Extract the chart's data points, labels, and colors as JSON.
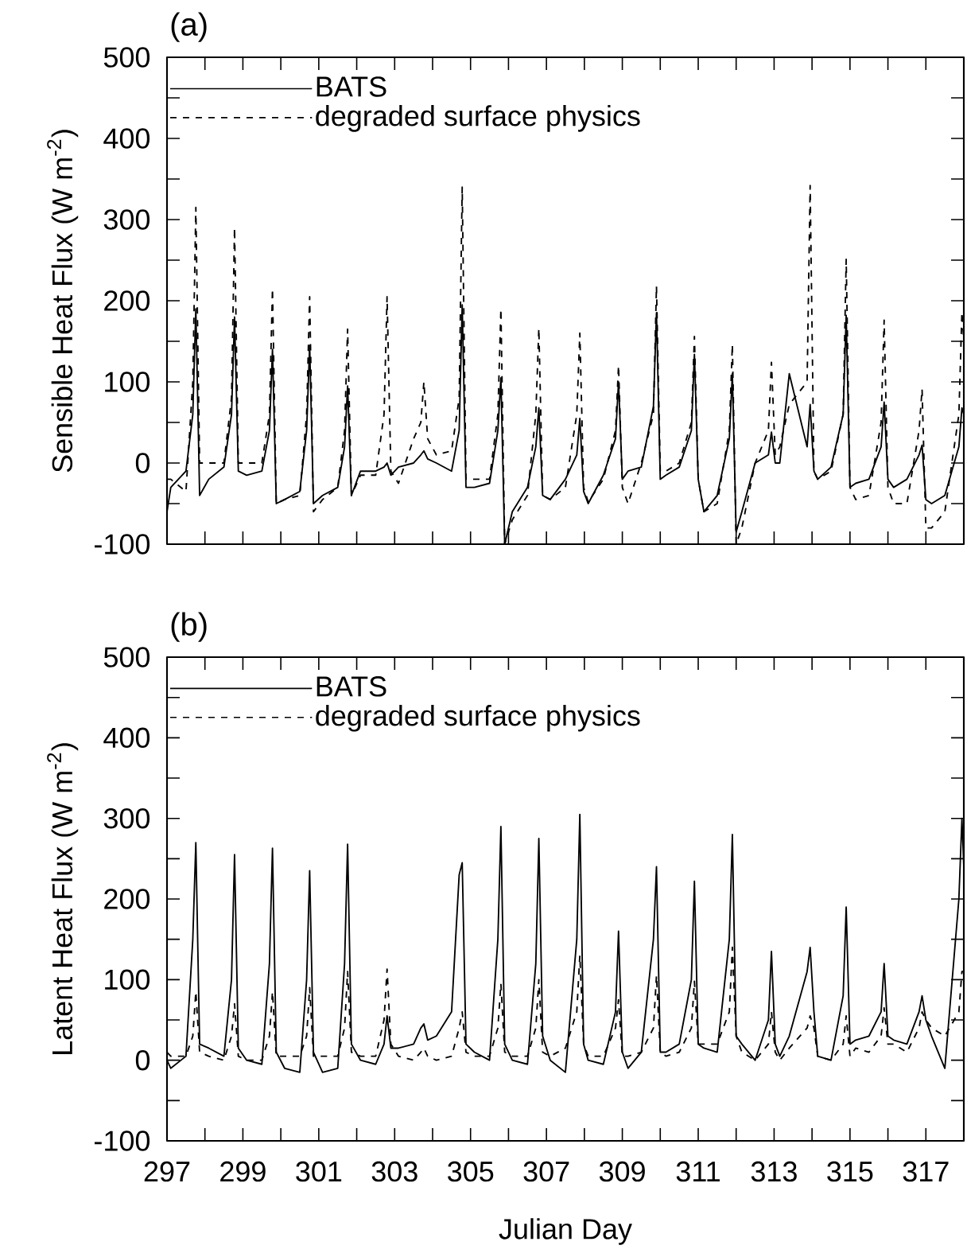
{
  "chart_data": [
    {
      "type": "line",
      "title": "(a)",
      "ylabel": "Sensible Heat Flux (W m$^{-2}$)",
      "x": [
        297.0,
        297.1,
        297.5,
        297.68,
        297.76,
        297.86,
        298.1,
        298.5,
        298.7,
        298.78,
        298.88,
        299.1,
        299.5,
        299.7,
        299.78,
        299.88,
        300.1,
        300.5,
        300.68,
        300.76,
        300.86,
        301.1,
        301.5,
        301.68,
        301.76,
        301.86,
        302.1,
        302.5,
        302.72,
        302.8,
        302.9,
        303.1,
        303.5,
        303.69,
        303.77,
        303.87,
        304.1,
        304.5,
        304.7,
        304.78,
        304.88,
        305.1,
        305.5,
        305.72,
        305.8,
        305.9,
        306.1,
        306.5,
        306.72,
        306.8,
        306.9,
        307.1,
        307.5,
        307.8,
        307.88,
        307.98,
        308.1,
        308.5,
        308.82,
        308.9,
        309.0,
        309.15,
        309.5,
        309.82,
        309.9,
        310.0,
        310.15,
        310.5,
        310.82,
        310.9,
        311.0,
        311.15,
        311.5,
        311.82,
        311.9,
        312.0,
        312.15,
        312.5,
        312.85,
        312.93,
        313.03,
        313.15,
        313.4,
        313.87,
        313.95,
        314.05,
        314.15,
        314.5,
        314.82,
        314.9,
        315.0,
        315.15,
        315.5,
        315.82,
        315.9,
        316.0,
        316.15,
        316.5,
        316.82,
        316.9,
        317.0,
        317.15,
        317.5,
        317.87,
        317.95,
        318.0
      ],
      "series": [
        {
          "name": "BATS",
          "color": "#000000",
          "line_style": "solid",
          "values": [
            -60,
            -30,
            -10,
            60,
            190,
            -40,
            -20,
            -5,
            60,
            180,
            -10,
            -15,
            -10,
            40,
            140,
            -50,
            -45,
            -35,
            40,
            145,
            -50,
            -40,
            -30,
            20,
            95,
            -40,
            -10,
            -10,
            -5,
            0,
            -15,
            -5,
            0,
            10,
            15,
            5,
            0,
            -10,
            40,
            195,
            -30,
            -30,
            -25,
            40,
            105,
            -100,
            -60,
            -30,
            20,
            68,
            -40,
            -45,
            -20,
            10,
            55,
            -35,
            -50,
            -15,
            30,
            100,
            -20,
            -10,
            -5,
            70,
            185,
            -20,
            -15,
            -5,
            40,
            134,
            -20,
            -60,
            -40,
            30,
            110,
            -85,
            -60,
            0,
            10,
            38,
            0,
            0,
            110,
            20,
            72,
            -10,
            -20,
            -5,
            60,
            182,
            -30,
            -25,
            -20,
            20,
            75,
            -20,
            -30,
            -20,
            10,
            22,
            -45,
            -50,
            -40,
            20,
            68,
            60
          ]
        },
        {
          "name": "degraded surface physics",
          "color": "#000000",
          "line_style": "dashed",
          "values": [
            -20,
            -20,
            -35,
            100,
            315,
            0,
            0,
            0,
            80,
            290,
            0,
            0,
            0,
            60,
            215,
            -50,
            -45,
            -40,
            60,
            205,
            -60,
            -45,
            -30,
            40,
            165,
            -40,
            -15,
            -15,
            60,
            205,
            -10,
            -25,
            30,
            50,
            100,
            30,
            10,
            15,
            80,
            340,
            -20,
            -20,
            -20,
            60,
            190,
            -100,
            -70,
            -40,
            60,
            166,
            -40,
            -45,
            -30,
            60,
            160,
            -30,
            -48,
            -20,
            40,
            120,
            -30,
            -50,
            0,
            60,
            218,
            -10,
            -10,
            0,
            50,
            156,
            -20,
            -60,
            -50,
            40,
            146,
            -100,
            -80,
            0,
            40,
            124,
            10,
            20,
            72,
            100,
            342,
            -10,
            -20,
            -10,
            60,
            251,
            -30,
            -45,
            -40,
            50,
            176,
            -30,
            -50,
            -50,
            40,
            91,
            -80,
            -80,
            -60,
            60,
            186,
            150
          ]
        }
      ],
      "xlim": [
        297,
        318
      ],
      "ylim": [
        -100,
        500
      ],
      "xticks": [
        297,
        {
          "value": 298,
          "label": null
        },
        299,
        {
          "value": 300,
          "label": null
        },
        301,
        {
          "value": 302,
          "label": null
        },
        303,
        {
          "value": 304,
          "label": null
        },
        305,
        {
          "value": 306,
          "label": null
        },
        307,
        {
          "value": 308,
          "label": null
        },
        309,
        {
          "value": 310,
          "label": null
        },
        311,
        {
          "value": 312,
          "label": null
        },
        313,
        {
          "value": 314,
          "label": null
        },
        315,
        {
          "value": 316,
          "label": null
        },
        317
      ],
      "yticks": [
        -100,
        {
          "value": -50,
          "label": null
        },
        0,
        {
          "value": 50,
          "label": null
        },
        100,
        {
          "value": 150,
          "label": null
        },
        200,
        {
          "value": 250,
          "label": null
        },
        300,
        {
          "value": 350,
          "label": null
        },
        400,
        {
          "value": 450,
          "label": null
        },
        500
      ],
      "tick_labels": "y",
      "legend": "top left",
      "marker": "none",
      "grid": false
    },
    {
      "type": "line",
      "title": "(b)",
      "xlabel": "Julian Day",
      "ylabel": "Latent Heat Flux (W m$^{-2}$)",
      "x": [
        297.0,
        297.1,
        297.5,
        297.68,
        297.76,
        297.86,
        298.1,
        298.5,
        298.7,
        298.78,
        298.88,
        299.1,
        299.5,
        299.7,
        299.78,
        299.88,
        300.1,
        300.5,
        300.68,
        300.76,
        300.86,
        301.1,
        301.5,
        301.68,
        301.76,
        301.86,
        302.1,
        302.5,
        302.72,
        302.8,
        302.9,
        303.1,
        303.5,
        303.69,
        303.77,
        303.87,
        304.1,
        304.5,
        304.7,
        304.78,
        304.88,
        305.1,
        305.5,
        305.72,
        305.8,
        305.9,
        306.1,
        306.5,
        306.72,
        306.8,
        306.9,
        307.1,
        307.5,
        307.8,
        307.88,
        307.98,
        308.1,
        308.5,
        308.82,
        308.9,
        309.0,
        309.15,
        309.5,
        309.82,
        309.9,
        310.0,
        310.15,
        310.5,
        310.82,
        310.9,
        311.0,
        311.15,
        311.5,
        311.82,
        311.9,
        312.0,
        312.15,
        312.5,
        312.85,
        312.93,
        313.03,
        313.15,
        313.4,
        313.87,
        313.95,
        314.05,
        314.15,
        314.5,
        314.82,
        314.9,
        315.0,
        315.15,
        315.5,
        315.82,
        315.9,
        316.0,
        316.15,
        316.5,
        316.82,
        316.9,
        317.0,
        317.15,
        317.5,
        317.87,
        317.95,
        318.0
      ],
      "series": [
        {
          "name": "BATS",
          "color": "#000000",
          "line_style": "solid",
          "values": [
            0,
            -10,
            5,
            150,
            270,
            20,
            15,
            5,
            100,
            255,
            15,
            0,
            -5,
            120,
            263,
            10,
            -10,
            -15,
            100,
            235,
            10,
            -15,
            -10,
            120,
            268,
            20,
            0,
            -5,
            20,
            55,
            15,
            15,
            20,
            40,
            45,
            25,
            30,
            60,
            230,
            245,
            20,
            10,
            0,
            150,
            290,
            20,
            0,
            -5,
            120,
            275,
            30,
            0,
            -15,
            150,
            305,
            20,
            0,
            -5,
            60,
            160,
            10,
            -10,
            10,
            150,
            240,
            10,
            10,
            20,
            100,
            222,
            20,
            15,
            10,
            150,
            280,
            30,
            20,
            0,
            50,
            135,
            20,
            5,
            30,
            110,
            140,
            60,
            5,
            0,
            80,
            190,
            20,
            25,
            30,
            60,
            120,
            30,
            25,
            20,
            60,
            80,
            50,
            30,
            -10,
            200,
            300,
            240
          ]
        },
        {
          "name": "degraded surface physics",
          "color": "#000000",
          "line_style": "dashed",
          "values": [
            10,
            5,
            5,
            30,
            85,
            10,
            5,
            0,
            30,
            70,
            5,
            0,
            0,
            30,
            85,
            5,
            5,
            5,
            30,
            90,
            5,
            5,
            5,
            40,
            110,
            10,
            5,
            5,
            50,
            113,
            20,
            5,
            0,
            10,
            15,
            5,
            0,
            5,
            40,
            60,
            10,
            5,
            5,
            40,
            95,
            10,
            5,
            5,
            40,
            100,
            10,
            5,
            15,
            60,
            130,
            20,
            5,
            5,
            40,
            75,
            5,
            5,
            10,
            40,
            105,
            10,
            5,
            10,
            40,
            98,
            20,
            20,
            20,
            60,
            140,
            30,
            10,
            0,
            20,
            60,
            10,
            0,
            15,
            40,
            55,
            40,
            5,
            0,
            20,
            55,
            5,
            15,
            10,
            30,
            65,
            20,
            20,
            10,
            40,
            60,
            50,
            40,
            30,
            60,
            110,
            110
          ]
        }
      ],
      "xlim": [
        297,
        318
      ],
      "ylim": [
        -100,
        500
      ],
      "xticks": [
        297,
        {
          "value": 298,
          "label": null
        },
        299,
        {
          "value": 300,
          "label": null
        },
        301,
        {
          "value": 302,
          "label": null
        },
        303,
        {
          "value": 304,
          "label": null
        },
        305,
        {
          "value": 306,
          "label": null
        },
        307,
        {
          "value": 308,
          "label": null
        },
        309,
        {
          "value": 310,
          "label": null
        },
        311,
        {
          "value": 312,
          "label": null
        },
        313,
        {
          "value": 314,
          "label": null
        },
        315,
        {
          "value": 316,
          "label": null
        },
        317
      ],
      "yticks": [
        -100,
        {
          "value": -50,
          "label": null
        },
        0,
        {
          "value": 50,
          "label": null
        },
        100,
        {
          "value": 150,
          "label": null
        },
        200,
        {
          "value": 250,
          "label": null
        },
        300,
        {
          "value": 350,
          "label": null
        },
        400,
        {
          "value": 450,
          "label": null
        },
        500
      ],
      "legend": "top left",
      "marker": "none",
      "grid": false
    }
  ]
}
